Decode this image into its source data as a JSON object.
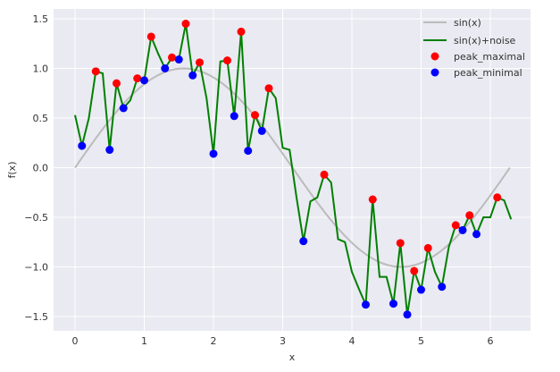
{
  "chart_data": {
    "type": "line",
    "xlabel": "x",
    "ylabel": "f(x)",
    "xlim": [
      -0.31,
      6.6
    ],
    "ylim": [
      -1.65,
      1.6
    ],
    "xticks": [
      "0",
      "1",
      "2",
      "3",
      "4",
      "5",
      "6"
    ],
    "yticks": [
      "−1.5",
      "−1.0",
      "−0.5",
      "0.0",
      "0.5",
      "1.0",
      "1.5"
    ],
    "grid": true,
    "legend_position": "top-right",
    "colors": {
      "sin": "#bbbbbb",
      "noise": "#008000",
      "max": "#ff0000",
      "min": "#0000ff",
      "bg": "#eaeaf2"
    },
    "x": [
      0,
      0.1,
      0.2,
      0.3,
      0.4,
      0.5,
      0.6,
      0.7,
      0.8,
      0.9,
      1.0,
      1.1,
      1.2,
      1.3,
      1.4,
      1.5,
      1.6,
      1.7,
      1.8,
      1.9,
      2.0,
      2.1,
      2.2,
      2.3,
      2.4,
      2.5,
      2.6,
      2.7,
      2.8,
      2.9,
      3.0,
      3.1,
      3.2,
      3.3,
      3.4,
      3.5,
      3.6,
      3.7,
      3.8,
      3.9,
      4.0,
      4.1,
      4.2,
      4.3,
      4.4,
      4.5,
      4.6,
      4.7,
      4.8,
      4.9,
      5.0,
      5.1,
      5.2,
      5.3,
      5.4,
      5.5,
      5.6,
      5.7,
      5.8,
      5.9,
      6.0,
      6.1,
      6.2,
      6.3
    ],
    "series": [
      {
        "name": "sin(x)",
        "function": "sin"
      },
      {
        "name": "sin(x)+noise",
        "values": [
          0.53,
          0.22,
          0.5,
          0.97,
          0.95,
          0.18,
          0.85,
          0.6,
          0.68,
          0.9,
          0.88,
          1.32,
          1.15,
          1.0,
          1.11,
          1.09,
          1.45,
          0.93,
          1.06,
          0.7,
          0.14,
          1.07,
          1.08,
          0.52,
          1.37,
          0.17,
          0.53,
          0.37,
          0.8,
          0.7,
          0.2,
          0.18,
          -0.3,
          -0.74,
          -0.34,
          -0.3,
          -0.07,
          -0.15,
          -0.72,
          -0.75,
          -1.05,
          -1.22,
          -1.38,
          -0.32,
          -1.1,
          -1.1,
          -1.37,
          -0.76,
          -1.48,
          -1.04,
          -1.23,
          -0.81,
          -1.05,
          -1.2,
          -0.8,
          -0.58,
          -0.63,
          -0.48,
          -0.67,
          -0.5,
          -0.5,
          -0.3,
          -0.33,
          -0.52
        ]
      },
      {
        "name": "peak_maximal",
        "x": [
          0.3,
          0.6,
          0.9,
          1.1,
          1.4,
          1.6,
          1.8,
          2.2,
          2.4,
          2.6,
          2.8,
          3.6,
          4.3,
          4.7,
          4.9,
          5.1,
          5.5,
          5.7,
          6.1
        ],
        "y": [
          0.97,
          0.85,
          0.9,
          1.32,
          1.11,
          1.45,
          1.06,
          1.08,
          1.37,
          0.53,
          0.8,
          -0.07,
          -0.32,
          -0.76,
          -1.04,
          -0.81,
          -0.58,
          -0.48,
          -0.3
        ]
      },
      {
        "name": "peak_minimal",
        "x": [
          0.1,
          0.5,
          0.7,
          1.0,
          1.3,
          1.5,
          1.7,
          2.0,
          2.3,
          2.5,
          2.7,
          3.3,
          4.2,
          4.6,
          4.8,
          5.0,
          5.3,
          5.6,
          5.8
        ],
        "y": [
          0.22,
          0.18,
          0.6,
          0.88,
          1.0,
          1.09,
          0.93,
          0.14,
          0.52,
          0.17,
          0.37,
          -0.74,
          -1.38,
          -1.37,
          -1.48,
          -1.23,
          -1.2,
          -0.63,
          -0.67
        ]
      }
    ]
  }
}
